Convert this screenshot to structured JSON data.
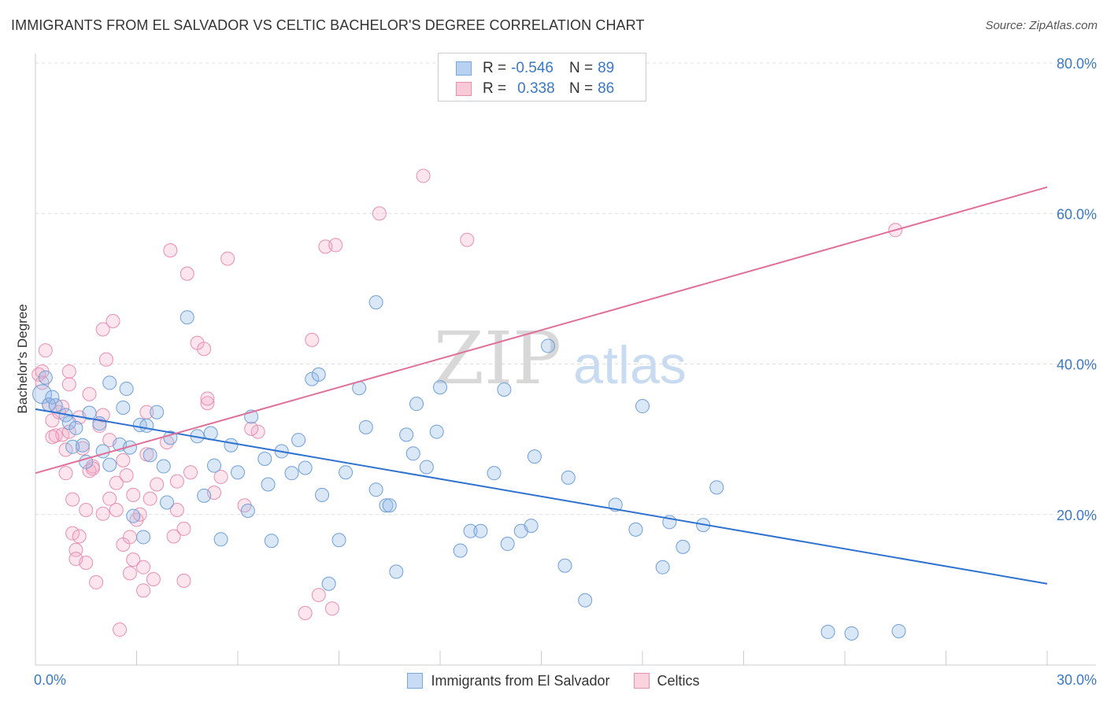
{
  "title": "IMMIGRANTS FROM EL SALVADOR VS CELTIC BACHELOR'S DEGREE CORRELATION CHART",
  "source": "Source: ZipAtlas.com",
  "watermark": {
    "zip": "ZIP",
    "atlas": "atlas"
  },
  "legend_top": {
    "series": [
      {
        "r_label": "R =",
        "r_value": "-0.546",
        "n_label": "N =",
        "n_value": "89",
        "color": "#a9c8f0",
        "border": "#7aa6dc"
      },
      {
        "r_label": "R =",
        "r_value": "0.338",
        "n_label": "N =",
        "n_value": "86",
        "color": "#f6c0d0",
        "border": "#e98fae"
      }
    ]
  },
  "legend_bottom": [
    {
      "label": "Immigrants from El Salvador",
      "color": "#c7dbf5",
      "border": "#7aa6dc"
    },
    {
      "label": "Celtics",
      "color": "#fad3df",
      "border": "#e98fae"
    }
  ],
  "chart_data": {
    "type": "scatter",
    "title": "IMMIGRANTS FROM EL SALVADOR VS CELTIC BACHELOR'S DEGREE CORRELATION CHART",
    "xlabel": "",
    "ylabel": "Bachelor's Degree",
    "xlim": [
      0,
      30
    ],
    "ylim": [
      0,
      80
    ],
    "x_tick_labels": [
      {
        "value": 0,
        "label": "0.0%"
      },
      {
        "value": 30,
        "label": "30.0%"
      }
    ],
    "y_tick_labels": [
      {
        "value": 20,
        "label": "20.0%"
      },
      {
        "value": 40,
        "label": "40.0%"
      },
      {
        "value": 60,
        "label": "60.0%"
      },
      {
        "value": 80,
        "label": "80.0%"
      }
    ],
    "grid": true,
    "legend_position": "top-center",
    "colors": {
      "blue_fill": "rgba(150,187,232,0.35)",
      "blue_stroke": "#6f9fd8",
      "blue_line": "#2f72cf",
      "pink_fill": "rgba(244,170,195,0.30)",
      "pink_stroke": "#e88fb0",
      "pink_line": "#e07098",
      "tick_label": "#3b78c3",
      "grid": "#dddddd"
    },
    "series": [
      {
        "name": "Immigrants from El Salvador",
        "r": -0.546,
        "n": 89,
        "trend": [
          [
            0,
            34.0
          ],
          [
            30,
            10.8
          ]
        ],
        "points": [
          [
            0.2,
            36.0
          ],
          [
            0.4,
            34.6
          ],
          [
            0.5,
            35.6
          ],
          [
            0.9,
            33.2
          ],
          [
            1.0,
            32.2
          ],
          [
            1.2,
            31.5
          ],
          [
            1.4,
            29.2
          ],
          [
            1.5,
            27.0
          ],
          [
            1.6,
            33.5
          ],
          [
            1.9,
            32.1
          ],
          [
            2.0,
            28.4
          ],
          [
            2.2,
            37.5
          ],
          [
            2.2,
            26.6
          ],
          [
            2.5,
            29.3
          ],
          [
            2.6,
            34.2
          ],
          [
            2.7,
            36.7
          ],
          [
            2.9,
            19.8
          ],
          [
            3.1,
            31.9
          ],
          [
            3.2,
            17.0
          ],
          [
            3.3,
            31.8
          ],
          [
            3.4,
            27.9
          ],
          [
            3.6,
            33.6
          ],
          [
            3.8,
            26.4
          ],
          [
            3.9,
            21.6
          ],
          [
            4.5,
            46.2
          ],
          [
            4.8,
            30.4
          ],
          [
            5.0,
            22.5
          ],
          [
            5.2,
            30.8
          ],
          [
            5.3,
            26.5
          ],
          [
            5.5,
            16.7
          ],
          [
            5.8,
            29.2
          ],
          [
            6.0,
            25.6
          ],
          [
            6.4,
            33.0
          ],
          [
            6.3,
            20.5
          ],
          [
            6.8,
            27.4
          ],
          [
            6.9,
            24.0
          ],
          [
            7.0,
            16.5
          ],
          [
            7.3,
            28.4
          ],
          [
            7.6,
            25.5
          ],
          [
            7.8,
            29.9
          ],
          [
            8.0,
            26.2
          ],
          [
            8.2,
            38.0
          ],
          [
            8.4,
            38.6
          ],
          [
            8.5,
            22.6
          ],
          [
            8.7,
            10.8
          ],
          [
            9.0,
            16.6
          ],
          [
            9.2,
            25.6
          ],
          [
            9.6,
            36.8
          ],
          [
            9.8,
            31.6
          ],
          [
            10.1,
            48.2
          ],
          [
            10.1,
            23.3
          ],
          [
            10.4,
            21.2
          ],
          [
            10.5,
            21.2
          ],
          [
            10.7,
            12.4
          ],
          [
            11.0,
            30.6
          ],
          [
            11.2,
            28.1
          ],
          [
            11.3,
            34.7
          ],
          [
            11.6,
            26.3
          ],
          [
            11.9,
            31.0
          ],
          [
            12.0,
            36.9
          ],
          [
            12.6,
            15.2
          ],
          [
            12.9,
            17.8
          ],
          [
            13.2,
            17.8
          ],
          [
            13.6,
            25.5
          ],
          [
            13.9,
            36.6
          ],
          [
            14.0,
            16.1
          ],
          [
            14.4,
            17.8
          ],
          [
            14.7,
            18.5
          ],
          [
            14.8,
            27.7
          ],
          [
            15.2,
            42.4
          ],
          [
            15.7,
            13.2
          ],
          [
            15.8,
            24.9
          ],
          [
            16.3,
            8.6
          ],
          [
            17.2,
            21.3
          ],
          [
            17.8,
            18.0
          ],
          [
            18.0,
            34.4
          ],
          [
            18.6,
            13.0
          ],
          [
            18.8,
            19.0
          ],
          [
            19.2,
            15.7
          ],
          [
            19.8,
            18.6
          ],
          [
            20.2,
            23.6
          ],
          [
            23.5,
            4.4
          ],
          [
            24.2,
            4.2
          ],
          [
            25.6,
            4.5
          ],
          [
            0.6,
            34.5
          ],
          [
            1.1,
            29.0
          ],
          [
            2.8,
            28.9
          ],
          [
            4.0,
            30.2
          ],
          [
            0.3,
            38.2
          ]
        ]
      },
      {
        "name": "Celtics",
        "r": 0.338,
        "n": 86,
        "trend": [
          [
            0,
            25.5
          ],
          [
            30,
            63.5
          ]
        ],
        "points": [
          [
            0.1,
            38.6
          ],
          [
            0.2,
            39.0
          ],
          [
            0.3,
            41.8
          ],
          [
            0.4,
            34.6
          ],
          [
            0.5,
            32.5
          ],
          [
            0.6,
            30.5
          ],
          [
            0.7,
            33.6
          ],
          [
            0.8,
            30.6
          ],
          [
            0.9,
            28.6
          ],
          [
            0.9,
            25.5
          ],
          [
            1.0,
            37.3
          ],
          [
            1.0,
            39.0
          ],
          [
            1.1,
            22.0
          ],
          [
            1.1,
            17.5
          ],
          [
            1.2,
            15.3
          ],
          [
            1.2,
            14.1
          ],
          [
            1.3,
            17.1
          ],
          [
            1.4,
            28.8
          ],
          [
            1.5,
            20.6
          ],
          [
            1.5,
            13.6
          ],
          [
            1.6,
            25.8
          ],
          [
            1.6,
            36.0
          ],
          [
            1.7,
            26.4
          ],
          [
            1.8,
            11.0
          ],
          [
            1.9,
            31.8
          ],
          [
            2.0,
            44.6
          ],
          [
            2.0,
            33.2
          ],
          [
            2.0,
            20.1
          ],
          [
            2.1,
            40.6
          ],
          [
            2.2,
            22.1
          ],
          [
            2.3,
            45.7
          ],
          [
            2.4,
            24.2
          ],
          [
            2.4,
            20.6
          ],
          [
            2.5,
            4.7
          ],
          [
            2.6,
            27.2
          ],
          [
            2.6,
            16.0
          ],
          [
            2.7,
            25.2
          ],
          [
            2.8,
            12.2
          ],
          [
            2.8,
            17.0
          ],
          [
            2.9,
            14.0
          ],
          [
            3.0,
            19.3
          ],
          [
            3.1,
            20.0
          ],
          [
            3.2,
            9.9
          ],
          [
            3.2,
            13.0
          ],
          [
            3.3,
            33.6
          ],
          [
            3.4,
            22.1
          ],
          [
            3.5,
            11.4
          ],
          [
            3.6,
            24.0
          ],
          [
            3.9,
            29.6
          ],
          [
            4.0,
            55.1
          ],
          [
            4.1,
            17.1
          ],
          [
            4.2,
            20.6
          ],
          [
            4.2,
            24.4
          ],
          [
            4.4,
            11.2
          ],
          [
            4.4,
            18.1
          ],
          [
            4.5,
            52.0
          ],
          [
            4.8,
            42.8
          ],
          [
            5.0,
            42.0
          ],
          [
            5.1,
            34.8
          ],
          [
            5.3,
            22.9
          ],
          [
            5.5,
            25.0
          ],
          [
            5.7,
            54.0
          ],
          [
            6.2,
            21.2
          ],
          [
            6.6,
            31.0
          ],
          [
            8.0,
            6.9
          ],
          [
            8.2,
            43.2
          ],
          [
            8.4,
            9.3
          ],
          [
            8.6,
            55.6
          ],
          [
            8.8,
            7.5
          ],
          [
            8.9,
            55.8
          ],
          [
            10.2,
            60.0
          ],
          [
            11.5,
            65.0
          ],
          [
            12.8,
            56.5
          ],
          [
            25.5,
            57.8
          ],
          [
            0.2,
            37.5
          ],
          [
            0.5,
            30.3
          ],
          [
            0.8,
            34.3
          ],
          [
            1.3,
            32.9
          ],
          [
            1.7,
            26.1
          ],
          [
            2.2,
            29.9
          ],
          [
            2.9,
            22.6
          ],
          [
            3.3,
            28.0
          ],
          [
            4.6,
            25.6
          ],
          [
            5.1,
            35.4
          ],
          [
            6.4,
            31.4
          ],
          [
            1.0,
            31.0
          ]
        ]
      }
    ]
  }
}
